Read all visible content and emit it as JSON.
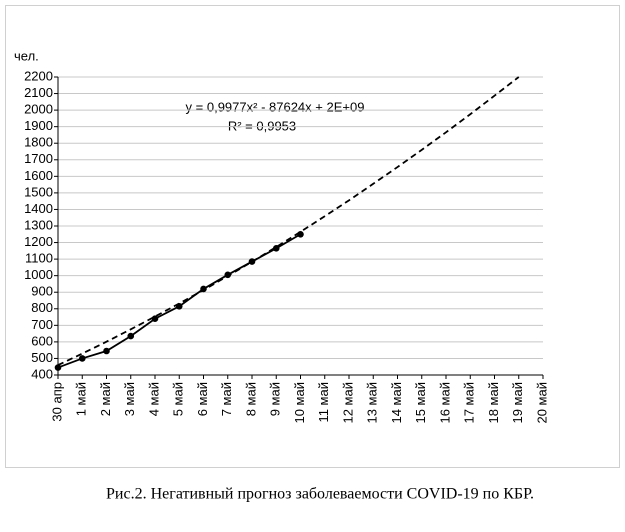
{
  "chart_data": {
    "type": "line",
    "y_label": "чел.",
    "annotations": [
      "y = 0,9977x² - 87624x + 2E+09",
      "R² = 0,9953"
    ],
    "caption": "Рис.2. Негативный прогноз заболеваемости COVID-19 по КБР.",
    "categories": [
      "30 апр",
      "1 май",
      "2 май",
      "3 май",
      "4 май",
      "5 май",
      "6 май",
      "7 май",
      "8 май",
      "9 май",
      "10 май",
      "11 май",
      "12 май",
      "13 май",
      "14 май",
      "15 май",
      "16 май",
      "17 май",
      "18 май",
      "19 май",
      "20 май"
    ],
    "series": [
      {
        "color": "#000000",
        "style": "solid",
        "markers": true,
        "values": [
          445,
          500,
          545,
          635,
          740,
          815,
          920,
          1005,
          1085,
          1165,
          1250,
          null,
          null,
          null,
          null,
          null,
          null,
          null,
          null,
          null,
          null
        ]
      },
      {
        "color": "#000000",
        "style": "dashed",
        "markers": false,
        "values": [
          460,
          529,
          601,
          676,
          753,
          832,
          913,
          998,
          1084,
          1173,
          1265,
          1359,
          1455,
          1555,
          1656,
          1760,
          1866,
          1975,
          2087,
          2200,
          null
        ]
      }
    ],
    "ylim": [
      400,
      2200
    ],
    "yticks": [
      400,
      500,
      600,
      700,
      800,
      900,
      1000,
      1100,
      1200,
      1300,
      1400,
      1500,
      1600,
      1700,
      1800,
      1900,
      2000,
      2100,
      2200
    ],
    "grid": true
  }
}
